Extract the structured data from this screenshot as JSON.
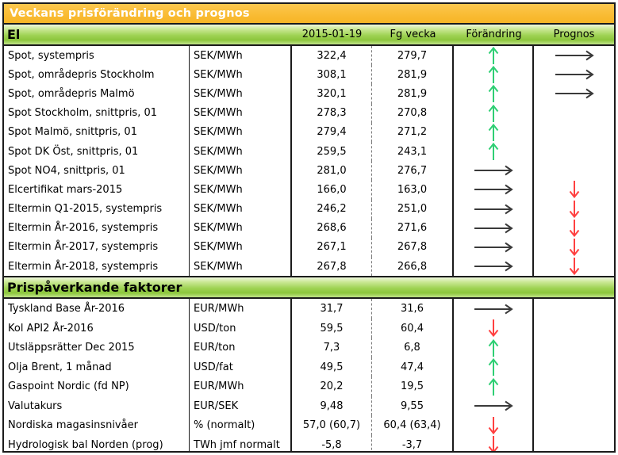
{
  "title": "Veckans prisförändring och prognos",
  "columns": [
    "2015-01-19",
    "Fg vecka",
    "Förändring",
    "Prognos"
  ],
  "colors": {
    "title_bg": "#F9BB33",
    "band_green": "#8CC63C",
    "border": "#1B1B1B",
    "arrow_up": "#2FCF74",
    "arrow_right": "#3A3A3A",
    "arrow_down": "#FF4040"
  },
  "sections": [
    {
      "title": "El",
      "rows": [
        {
          "name": "Spot, systempris",
          "unit": "SEK/MWh",
          "current": "322,4",
          "previous": "279,7",
          "change": "up",
          "prognos": "right"
        },
        {
          "name": "Spot, områdepris Stockholm",
          "unit": "SEK/MWh",
          "current": "308,1",
          "previous": "281,9",
          "change": "up",
          "prognos": "right"
        },
        {
          "name": "Spot, områdepris Malmö",
          "unit": "SEK/MWh",
          "current": "320,1",
          "previous": "281,9",
          "change": "up",
          "prognos": "right"
        },
        {
          "name": "Spot Stockholm, snittpris,  01",
          "unit": "SEK/MWh",
          "current": "278,3",
          "previous": "270,8",
          "change": "up",
          "prognos": ""
        },
        {
          "name": "Spot Malmö, snittpris,  01",
          "unit": "SEK/MWh",
          "current": "279,4",
          "previous": "271,2",
          "change": "up",
          "prognos": ""
        },
        {
          "name": "Spot DK Öst, snittpris,  01",
          "unit": "SEK/MWh",
          "current": "259,5",
          "previous": "243,1",
          "change": "up",
          "prognos": ""
        },
        {
          "name": "Spot NO4, snittpris,  01",
          "unit": "SEK/MWh",
          "current": "281,0",
          "previous": "276,7",
          "change": "right",
          "prognos": ""
        },
        {
          "name": "Elcertifikat mars-2015",
          "unit": "SEK/MWh",
          "current": "166,0",
          "previous": "163,0",
          "change": "right",
          "prognos": "down"
        },
        {
          "name": "Eltermin Q1-2015, systempris",
          "unit": "SEK/MWh",
          "current": "246,2",
          "previous": "251,0",
          "change": "right",
          "prognos": "down"
        },
        {
          "name": "Eltermin År-2016, systempris",
          "unit": "SEK/MWh",
          "current": "268,6",
          "previous": "271,6",
          "change": "right",
          "prognos": "down"
        },
        {
          "name": "Eltermin År-2017, systempris",
          "unit": "SEK/MWh",
          "current": "267,1",
          "previous": "267,8",
          "change": "right",
          "prognos": "down"
        },
        {
          "name": "Eltermin År-2018, systempris",
          "unit": "SEK/MWh",
          "current": "267,8",
          "previous": "266,8",
          "change": "right",
          "prognos": "down"
        }
      ]
    },
    {
      "title": "Prispåverkande faktorer",
      "rows": [
        {
          "name": "Tyskland Base År-2016",
          "unit": "EUR/MWh",
          "current": "31,7",
          "previous": "31,6",
          "change": "right",
          "prognos": ""
        },
        {
          "name": "Kol API2 År-2016",
          "unit": "USD/ton",
          "current": "59,5",
          "previous": "60,4",
          "change": "down",
          "prognos": ""
        },
        {
          "name": "Utsläppsrätter Dec 2015",
          "unit": "EUR/ton",
          "current": "7,3",
          "previous": "6,8",
          "change": "up",
          "prognos": ""
        },
        {
          "name": "Olja Brent, 1 månad",
          "unit": "USD/fat",
          "current": "49,5",
          "previous": "47,4",
          "change": "up",
          "prognos": ""
        },
        {
          "name": "Gaspoint Nordic (fd NP)",
          "unit": "EUR/MWh",
          "current": "20,2",
          "previous": "19,5",
          "change": "up",
          "prognos": ""
        },
        {
          "name": "Valutakurs",
          "unit": "EUR/SEK",
          "current": "9,48",
          "previous": "9,55",
          "change": "right",
          "prognos": ""
        },
        {
          "name": "Nordiska magasinsnivåer",
          "unit": "%   (normalt)",
          "current": "57,0 (60,7)",
          "previous": "60,4 (63,4)",
          "change": "down",
          "prognos": ""
        },
        {
          "name": "Hydrologisk bal Norden (prog)",
          "unit": "TWh jmf normalt",
          "current": "-5,8",
          "previous": "-3,7",
          "change": "down",
          "prognos": ""
        }
      ]
    }
  ]
}
